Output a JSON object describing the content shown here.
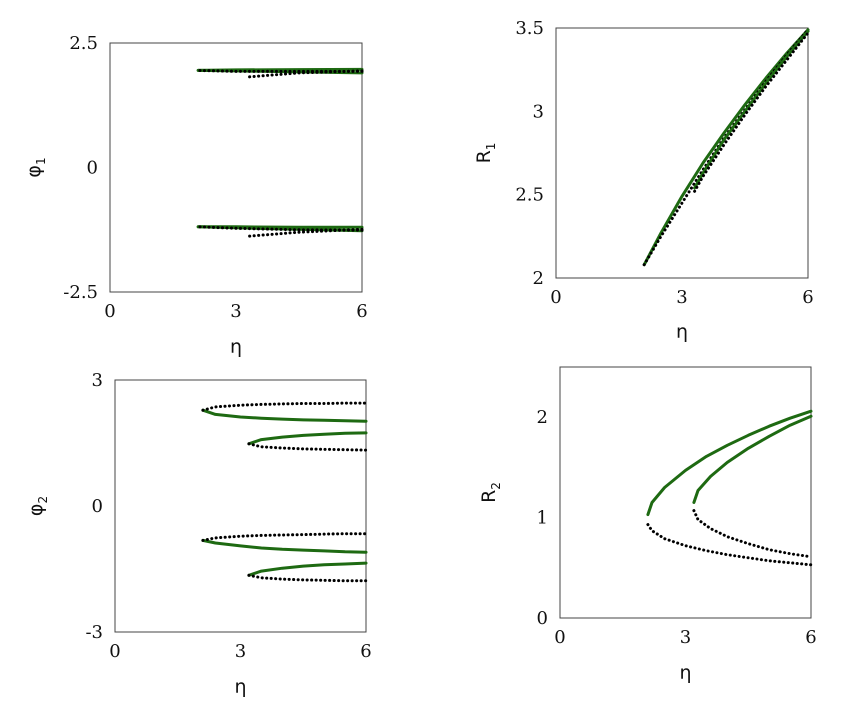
{
  "chart_data": [
    {
      "type": "line",
      "ylabel": "φ",
      "ylabel_sub": "1",
      "xlabel": "η",
      "xlim": [
        0,
        6
      ],
      "ylim": [
        -2.5,
        2.5
      ],
      "xticks": [
        "0",
        "3",
        "6"
      ],
      "yticks": [
        "-2.5",
        "0",
        "2.5"
      ],
      "xtick_values": [
        0,
        3,
        6
      ],
      "ytick_values": [
        -2.5,
        0,
        2.5
      ],
      "series": [
        {
          "style": "stable",
          "x": [
            6.0,
            4.5,
            3.0,
            2.1
          ],
          "y": [
            1.97,
            1.965,
            1.96,
            1.95
          ]
        },
        {
          "style": "stable",
          "x": [
            2.1,
            3.0,
            4.5,
            6.0
          ],
          "y": [
            1.95,
            1.94,
            1.92,
            1.9
          ]
        },
        {
          "style": "unstable",
          "x": [
            6.0,
            4.5,
            3.3
          ],
          "y": [
            1.94,
            1.9,
            1.82
          ]
        },
        {
          "style": "unstable",
          "x": [
            6.0,
            4.5,
            3.0,
            2.1
          ],
          "y": [
            1.93,
            1.93,
            1.93,
            1.95
          ]
        },
        {
          "style": "stable",
          "x": [
            6.0,
            4.5,
            3.0,
            2.1
          ],
          "y": [
            -1.2,
            -1.2,
            -1.19,
            -1.19
          ]
        },
        {
          "style": "stable",
          "x": [
            2.1,
            3.0,
            4.5,
            6.0
          ],
          "y": [
            -1.19,
            -1.21,
            -1.24,
            -1.27
          ]
        },
        {
          "style": "unstable",
          "x": [
            6.0,
            4.5,
            3.3
          ],
          "y": [
            -1.24,
            -1.3,
            -1.38
          ]
        },
        {
          "style": "unstable",
          "x": [
            6.0,
            4.5,
            3.0,
            2.1
          ],
          "y": [
            -1.26,
            -1.25,
            -1.22,
            -1.19
          ]
        }
      ]
    },
    {
      "type": "line",
      "ylabel": "R",
      "ylabel_sub": "1",
      "xlabel": "η",
      "xlim": [
        0,
        6
      ],
      "ylim": [
        2,
        3.5
      ],
      "xticks": [
        "0",
        "3",
        "6"
      ],
      "yticks": [
        "2",
        "2.5",
        "3",
        "3.5"
      ],
      "xtick_values": [
        0,
        3,
        6
      ],
      "ytick_values": [
        2,
        2.5,
        3,
        3.5
      ],
      "series": [
        {
          "style": "stable",
          "x": [
            2.1,
            2.5,
            3.0,
            3.5,
            4.0,
            4.5,
            5.0,
            5.5,
            6.0
          ],
          "y": [
            2.08,
            2.27,
            2.49,
            2.69,
            2.87,
            3.04,
            3.2,
            3.35,
            3.49
          ]
        },
        {
          "style": "unstable",
          "x": [
            2.1,
            2.5,
            3.0,
            3.5,
            4.0,
            4.5,
            5.0,
            5.5,
            6.0
          ],
          "y": [
            2.08,
            2.25,
            2.45,
            2.65,
            2.84,
            3.01,
            3.18,
            3.34,
            3.49
          ]
        },
        {
          "style": "stable",
          "x": [
            3.3,
            3.5,
            4.0,
            4.5,
            5.0,
            5.5,
            6.0
          ],
          "y": [
            2.54,
            2.63,
            2.83,
            3.0,
            3.17,
            3.33,
            3.48
          ]
        },
        {
          "style": "unstable",
          "x": [
            3.3,
            3.5,
            4.0,
            4.5,
            5.0,
            5.5,
            6.0
          ],
          "y": [
            2.52,
            2.61,
            2.8,
            2.98,
            3.15,
            3.31,
            3.47
          ]
        }
      ]
    },
    {
      "type": "line",
      "ylabel": "φ",
      "ylabel_sub": "2",
      "xlabel": "η",
      "xlim": [
        0,
        6
      ],
      "ylim": [
        -3,
        3
      ],
      "xticks": [
        "0",
        "3",
        "6"
      ],
      "yticks": [
        "-3",
        "0",
        "3"
      ],
      "xtick_values": [
        0,
        3,
        6
      ],
      "ytick_values": [
        -3,
        0,
        3
      ],
      "series": [
        {
          "style": "stable",
          "x": [
            2.1,
            2.4,
            3.0,
            3.5,
            4.0,
            4.5,
            5.0,
            5.5,
            6.0
          ],
          "y": [
            2.28,
            2.18,
            2.12,
            2.09,
            2.07,
            2.05,
            2.04,
            2.03,
            2.02
          ]
        },
        {
          "style": "unstable",
          "x": [
            2.1,
            2.4,
            3.0,
            3.5,
            4.0,
            4.5,
            5.0,
            5.5,
            6.0
          ],
          "y": [
            2.28,
            2.36,
            2.4,
            2.42,
            2.43,
            2.44,
            2.44,
            2.45,
            2.45
          ]
        },
        {
          "style": "stable",
          "x": [
            3.2,
            3.5,
            4.0,
            4.5,
            5.0,
            5.5,
            6.0
          ],
          "y": [
            1.48,
            1.58,
            1.64,
            1.68,
            1.71,
            1.73,
            1.74
          ]
        },
        {
          "style": "unstable",
          "x": [
            3.2,
            3.5,
            4.0,
            4.5,
            5.0,
            5.5,
            6.0
          ],
          "y": [
            1.48,
            1.41,
            1.38,
            1.36,
            1.35,
            1.34,
            1.33
          ]
        },
        {
          "style": "stable",
          "x": [
            2.1,
            2.4,
            3.0,
            3.5,
            4.0,
            4.5,
            5.0,
            5.5,
            6.0
          ],
          "y": [
            -0.82,
            -0.88,
            -0.95,
            -1.0,
            -1.03,
            -1.05,
            -1.07,
            -1.09,
            -1.1
          ]
        },
        {
          "style": "unstable",
          "x": [
            2.1,
            2.4,
            3.0,
            3.5,
            4.0,
            4.5,
            5.0,
            5.5,
            6.0
          ],
          "y": [
            -0.82,
            -0.76,
            -0.72,
            -0.7,
            -0.69,
            -0.68,
            -0.67,
            -0.66,
            -0.66
          ]
        },
        {
          "style": "stable",
          "x": [
            3.2,
            3.5,
            4.0,
            4.5,
            5.0,
            5.5,
            6.0
          ],
          "y": [
            -1.65,
            -1.55,
            -1.48,
            -1.43,
            -1.4,
            -1.38,
            -1.36
          ]
        },
        {
          "style": "unstable",
          "x": [
            3.2,
            3.5,
            4.0,
            4.5,
            5.0,
            5.5,
            6.0
          ],
          "y": [
            -1.65,
            -1.71,
            -1.74,
            -1.76,
            -1.77,
            -1.78,
            -1.78
          ]
        }
      ]
    },
    {
      "type": "line",
      "ylabel": "R",
      "ylabel_sub": "2",
      "xlabel": "η",
      "xlim": [
        0,
        6
      ],
      "ylim": [
        0,
        2.5
      ],
      "xticks": [
        "0",
        "3",
        "6"
      ],
      "yticks": [
        "0",
        "1",
        "2"
      ],
      "xtick_values": [
        0,
        3,
        6
      ],
      "ytick_values": [
        0,
        1,
        2
      ],
      "series": [
        {
          "style": "stable",
          "x": [
            2.1,
            2.2,
            2.5,
            3.0,
            3.5,
            4.0,
            4.5,
            5.0,
            5.5,
            6.0
          ],
          "y": [
            1.03,
            1.15,
            1.3,
            1.47,
            1.61,
            1.72,
            1.82,
            1.91,
            1.99,
            2.06
          ]
        },
        {
          "style": "unstable",
          "x": [
            2.1,
            2.2,
            2.5,
            3.0,
            3.5,
            4.0,
            4.5,
            5.0,
            5.5,
            6.0
          ],
          "y": [
            0.93,
            0.87,
            0.79,
            0.72,
            0.67,
            0.63,
            0.6,
            0.57,
            0.55,
            0.53
          ]
        },
        {
          "style": "stable",
          "x": [
            3.2,
            3.3,
            3.6,
            4.0,
            4.5,
            5.0,
            5.5,
            6.0
          ],
          "y": [
            1.15,
            1.27,
            1.41,
            1.55,
            1.69,
            1.81,
            1.92,
            2.01
          ]
        },
        {
          "style": "unstable",
          "x": [
            3.2,
            3.3,
            3.6,
            4.0,
            4.5,
            5.0,
            5.5,
            6.0
          ],
          "y": [
            1.07,
            0.98,
            0.89,
            0.81,
            0.74,
            0.68,
            0.64,
            0.61
          ]
        }
      ]
    }
  ],
  "colors": {
    "stable": "#1e6a12",
    "unstable": "#000000",
    "frame": "#444444",
    "text": "#111111"
  }
}
